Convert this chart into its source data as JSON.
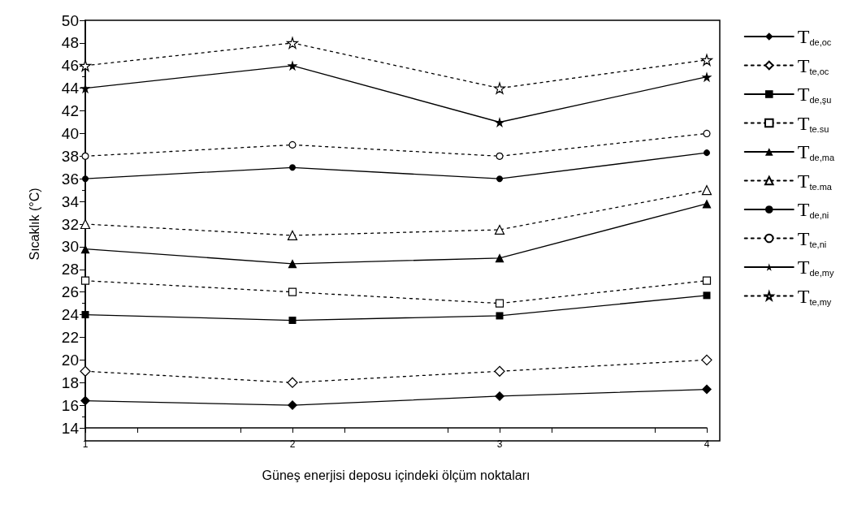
{
  "chart_data": {
    "type": "line",
    "xlabel": "Güneş enerjisi deposu içindeki ölçüm noktaları",
    "ylabel": "Sıcaklık (°C)",
    "x": [
      1,
      2,
      3,
      4
    ],
    "xlim": [
      1,
      4
    ],
    "xticks": [
      1,
      2,
      3,
      4
    ],
    "ylim": [
      14,
      50
    ],
    "yticks": [
      14,
      16,
      18,
      20,
      22,
      24,
      26,
      28,
      30,
      32,
      34,
      36,
      38,
      40,
      42,
      44,
      46,
      48,
      50
    ],
    "grid": false,
    "legend": "right",
    "series": [
      {
        "name": "T$_{de,oc}$",
        "color": "#000000",
        "marker": "diamond",
        "line_style": "solid",
        "values": [
          16.4,
          16,
          16.8,
          17.4
        ]
      },
      {
        "name": "T$_{te,oc}$",
        "color": "#000000",
        "marker": "diamond",
        "line_style": "dotted",
        "values": [
          19,
          18,
          19,
          20
        ]
      },
      {
        "name": "T$_{de,şu}$",
        "color": "#000000",
        "marker": "square",
        "line_style": "solid",
        "values": [
          24,
          23.5,
          23.9,
          25.7
        ]
      },
      {
        "name": "T$_{te.su}$",
        "color": "#000000",
        "marker": "square",
        "line_style": "dotted",
        "values": [
          27,
          26,
          25,
          27
        ]
      },
      {
        "name": "T$_{de,ma}$",
        "color": "#000000",
        "marker": "triangle",
        "line_style": "solid",
        "values": [
          29.8,
          28.5,
          29,
          33.8
        ]
      },
      {
        "name": "T$_{te.ma}$",
        "color": "#000000",
        "marker": "triangle",
        "line_style": "dotted",
        "values": [
          32,
          31,
          31.5,
          35
        ]
      },
      {
        "name": "T$_{de,ni}$",
        "color": "#000000",
        "marker": "circle",
        "line_style": "solid",
        "values": [
          36,
          37,
          36,
          38.3
        ]
      },
      {
        "name": "T$_{te,ni}$",
        "color": "#000000",
        "marker": "circle",
        "line_style": "dotted",
        "values": [
          38,
          39,
          38,
          40
        ]
      },
      {
        "name": "T$_{de,my}$",
        "color": "#000000",
        "marker": "star",
        "line_style": "solid",
        "values": [
          44,
          46,
          41,
          45
        ]
      },
      {
        "name": "T$_{te,my}$",
        "color": "#000000",
        "marker": "star",
        "line_style": "dotted",
        "values": [
          46,
          48,
          44,
          46.5
        ]
      }
    ]
  }
}
